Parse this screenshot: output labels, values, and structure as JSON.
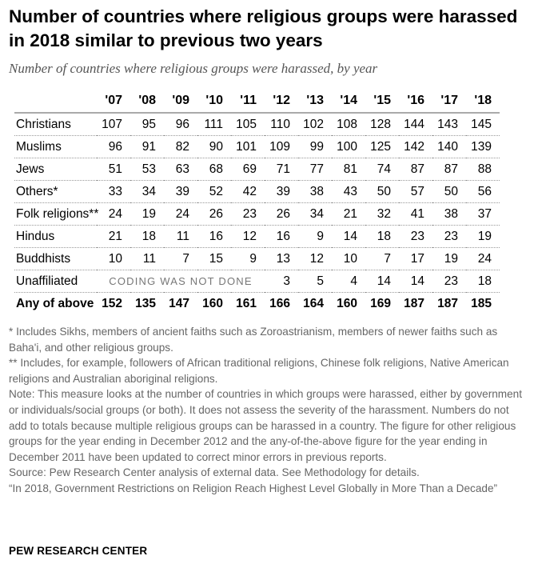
{
  "title": "Number of countries where religious groups were harassed in 2018 similar to previous two years",
  "subtitle": "Number of countries where religious groups were harassed, by year",
  "chart_data": {
    "type": "table",
    "columns": [
      "'07",
      "'08",
      "'09",
      "'10",
      "'11",
      "'12",
      "'13",
      "'14",
      "'15",
      "'16",
      "'17",
      "'18"
    ],
    "rows": [
      {
        "label": "Christians",
        "values": [
          107,
          95,
          96,
          111,
          105,
          110,
          102,
          108,
          128,
          144,
          143,
          145
        ]
      },
      {
        "label": "Muslims",
        "values": [
          96,
          91,
          82,
          90,
          101,
          109,
          99,
          100,
          125,
          142,
          140,
          139
        ]
      },
      {
        "label": "Jews",
        "values": [
          51,
          53,
          63,
          68,
          69,
          71,
          77,
          81,
          74,
          87,
          87,
          88
        ]
      },
      {
        "label": "Others*",
        "values": [
          33,
          34,
          39,
          52,
          42,
          39,
          38,
          43,
          50,
          57,
          50,
          56
        ]
      },
      {
        "label": "Folk religions**",
        "values": [
          24,
          19,
          24,
          26,
          23,
          26,
          34,
          21,
          32,
          41,
          38,
          37
        ]
      },
      {
        "label": "Hindus",
        "values": [
          21,
          18,
          11,
          16,
          12,
          16,
          9,
          14,
          18,
          23,
          23,
          19
        ]
      },
      {
        "label": "Buddhists",
        "values": [
          10,
          11,
          7,
          15,
          9,
          13,
          12,
          10,
          7,
          17,
          19,
          24
        ]
      },
      {
        "label": "Unaffiliated",
        "values": [
          null,
          null,
          null,
          null,
          null,
          3,
          5,
          4,
          14,
          14,
          23,
          18
        ],
        "note": "CODING WAS NOT DONE"
      }
    ],
    "total": {
      "label": "Any of above",
      "values": [
        152,
        135,
        147,
        160,
        161,
        166,
        164,
        160,
        169,
        187,
        187,
        185
      ]
    }
  },
  "notes": [
    "* Includes Sikhs, members of ancient faiths such as Zoroastrianism, members of newer faiths such as Baha'i, and other religious groups.",
    "** Includes, for example, followers of African traditional religions, Chinese folk religions, Native American religions and Australian aboriginal religions.",
    "Note: This measure looks at the number of countries in which groups were harassed, either by government or individuals/social groups (or both). It does not assess the severity of the harassment. Numbers do not add to totals because multiple religious groups can be harassed in a country. The figure for other religious groups for the year ending in December 2012 and the any-of-the-above figure for the year ending in December 2011 have been updated to correct minor errors in previous reports.",
    "Source: Pew Research Center analysis of external data. See Methodology for details.",
    "“In 2018, Government Restrictions on Religion Reach Highest Level Globally in More Than a Decade”"
  ],
  "brand": "PEW RESEARCH CENTER"
}
